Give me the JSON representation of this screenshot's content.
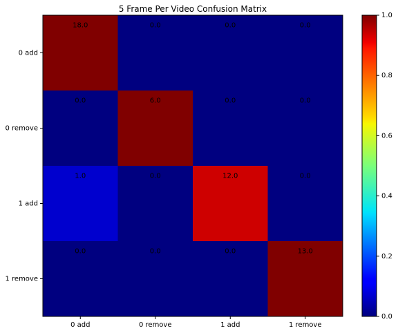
{
  "chart_data": {
    "type": "heatmap",
    "title": "5 Frame Per Video Confusion Matrix",
    "x_categories": [
      "0 add",
      "0 remove",
      "1 add",
      "1 remove"
    ],
    "y_categories": [
      "0 add",
      "0 remove",
      "1 add",
      "1 remove"
    ],
    "values": [
      [
        18.0,
        0.0,
        0.0,
        0.0
      ],
      [
        0.0,
        6.0,
        0.0,
        0.0
      ],
      [
        1.0,
        0.0,
        12.0,
        0.0
      ],
      [
        0.0,
        0.0,
        0.0,
        13.0
      ]
    ],
    "normalized": [
      [
        1.0,
        0.0,
        0.0,
        0.0
      ],
      [
        0.0,
        1.0,
        0.0,
        0.0
      ],
      [
        0.077,
        0.0,
        0.923,
        0.0
      ],
      [
        0.0,
        0.0,
        0.0,
        1.0
      ]
    ],
    "cell_labels": [
      [
        "18.0",
        "0.0",
        "0.0",
        "0.0"
      ],
      [
        "0.0",
        "6.0",
        "0.0",
        "0.0"
      ],
      [
        "1.0",
        "0.0",
        "12.0",
        "0.0"
      ],
      [
        "0.0",
        "0.0",
        "0.0",
        "13.0"
      ]
    ],
    "colorbar": {
      "colormap": "jet",
      "range": [
        0.0,
        1.0
      ],
      "ticks": [
        0.0,
        0.2,
        0.4,
        0.6,
        0.8,
        1.0
      ],
      "tick_labels": [
        "0.0",
        "0.2",
        "0.4",
        "0.6",
        "0.8",
        "1.0"
      ]
    },
    "grid": false
  }
}
